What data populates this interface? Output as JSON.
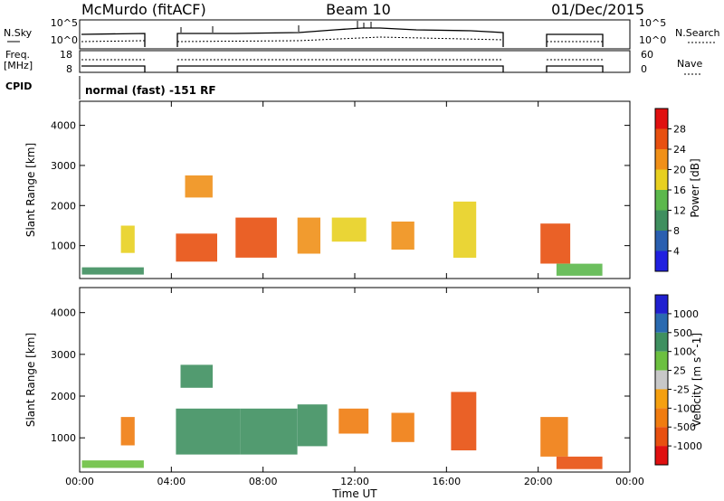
{
  "header": {
    "station": "McMurdo (fitACF)",
    "beam": "Beam 10",
    "date": "01/Dec/2015"
  },
  "top_panels": {
    "nsky_label": "N.Sky",
    "nsearch_label": "N.Search",
    "nsky_ticks": [
      "10^5",
      "10^0"
    ],
    "nsearch_ticks": [
      "10^5",
      "10^0"
    ],
    "freq_label": "Freq.",
    "freq_unit": "[MHz]",
    "freq_ticks": [
      "18",
      "8"
    ],
    "nave_label": "Nave",
    "nave_ticks": [
      "60",
      "0"
    ],
    "cpid_label": "CPID",
    "cpid_text": "normal (fast) -151 RF"
  },
  "colors": {
    "power_scale": [
      "#2020e0",
      "#2a5fb0",
      "#3f8f5f",
      "#5cb84c",
      "#e8d020",
      "#f09018",
      "#e85010",
      "#e01010"
    ],
    "velocity_scale": [
      "#e01010",
      "#e85010",
      "#f07c10",
      "#f5a010",
      "#c8c8c8",
      "#6cc040",
      "#3f9060",
      "#2a6ab0",
      "#2020d0"
    ]
  },
  "chart_data": [
    {
      "type": "heatmap",
      "panel": "power",
      "xlabel": "",
      "ylabel": "Slant Range [km]",
      "x_range_hours": [
        0,
        24
      ],
      "y_ticks": [
        "1000",
        "2000",
        "3000",
        "4000"
      ],
      "ylim": [
        180,
        4600
      ],
      "colorbar_label": "Power [dB]",
      "colorbar_ticks": [
        "4",
        "8",
        "12",
        "16",
        "20",
        "24",
        "28"
      ],
      "data_gaps_hours": [
        [
          3.0,
          4.05
        ],
        [
          18.5,
          20.05
        ]
      ],
      "regions": [
        {
          "t0": 0.1,
          "t1": 2.8,
          "r0": 280,
          "r1": 460,
          "v": 10
        },
        {
          "t0": 1.8,
          "t1": 2.4,
          "r0": 820,
          "r1": 1500,
          "v": 18
        },
        {
          "t0": 4.2,
          "t1": 6.0,
          "r0": 600,
          "r1": 1300,
          "v": 26
        },
        {
          "t0": 4.6,
          "t1": 5.8,
          "r0": 2200,
          "r1": 2750,
          "v": 22
        },
        {
          "t0": 6.8,
          "t1": 8.6,
          "r0": 700,
          "r1": 1700,
          "v": 24
        },
        {
          "t0": 9.5,
          "t1": 10.5,
          "r0": 800,
          "r1": 1700,
          "v": 20
        },
        {
          "t0": 11.0,
          "t1": 12.5,
          "r0": 1100,
          "r1": 1700,
          "v": 16
        },
        {
          "t0": 13.6,
          "t1": 14.6,
          "r0": 900,
          "r1": 1600,
          "v": 20
        },
        {
          "t0": 16.3,
          "t1": 17.3,
          "r0": 700,
          "r1": 2100,
          "v": 18
        },
        {
          "t0": 20.1,
          "t1": 21.4,
          "r0": 550,
          "r1": 1550,
          "v": 26
        },
        {
          "t0": 20.8,
          "t1": 22.8,
          "r0": 250,
          "r1": 550,
          "v": 14
        }
      ]
    },
    {
      "type": "heatmap",
      "panel": "velocity",
      "xlabel": "Time UT",
      "ylabel": "Slant Range [km]",
      "x_range_hours": [
        0,
        24
      ],
      "x_ticks": [
        "00:00",
        "04:00",
        "08:00",
        "12:00",
        "16:00",
        "20:00",
        "00:00"
      ],
      "y_ticks": [
        "1000",
        "2000",
        "3000",
        "4000"
      ],
      "ylim": [
        180,
        4600
      ],
      "colorbar_label": "Velocity [m s^-1]",
      "colorbar_ticks": [
        "1000",
        "500",
        "100",
        "25",
        "-25",
        "-100",
        "-500",
        "-1000"
      ],
      "data_gaps_hours": [
        [
          3.0,
          4.05
        ],
        [
          18.5,
          20.05
        ]
      ],
      "regions": [
        {
          "t0": 0.1,
          "t1": 2.8,
          "r0": 280,
          "r1": 460,
          "v": 50
        },
        {
          "t0": 1.8,
          "t1": 2.4,
          "r0": 820,
          "r1": 1500,
          "v": -300
        },
        {
          "t0": 4.2,
          "t1": 7.0,
          "r0": 600,
          "r1": 1700,
          "v": 300
        },
        {
          "t0": 4.4,
          "t1": 5.8,
          "r0": 2200,
          "r1": 2750,
          "v": 200
        },
        {
          "t0": 7.0,
          "t1": 9.5,
          "r0": 600,
          "r1": 1700,
          "v": 400
        },
        {
          "t0": 9.5,
          "t1": 10.8,
          "r0": 800,
          "r1": 1800,
          "v": 200
        },
        {
          "t0": 11.3,
          "t1": 12.6,
          "r0": 1100,
          "r1": 1700,
          "v": -300
        },
        {
          "t0": 13.6,
          "t1": 14.6,
          "r0": 900,
          "r1": 1600,
          "v": -400
        },
        {
          "t0": 16.2,
          "t1": 17.3,
          "r0": 700,
          "r1": 2100,
          "v": -700
        },
        {
          "t0": 20.1,
          "t1": 21.3,
          "r0": 550,
          "r1": 1500,
          "v": -250
        },
        {
          "t0": 20.8,
          "t1": 22.8,
          "r0": 250,
          "r1": 550,
          "v": -600
        }
      ]
    }
  ]
}
